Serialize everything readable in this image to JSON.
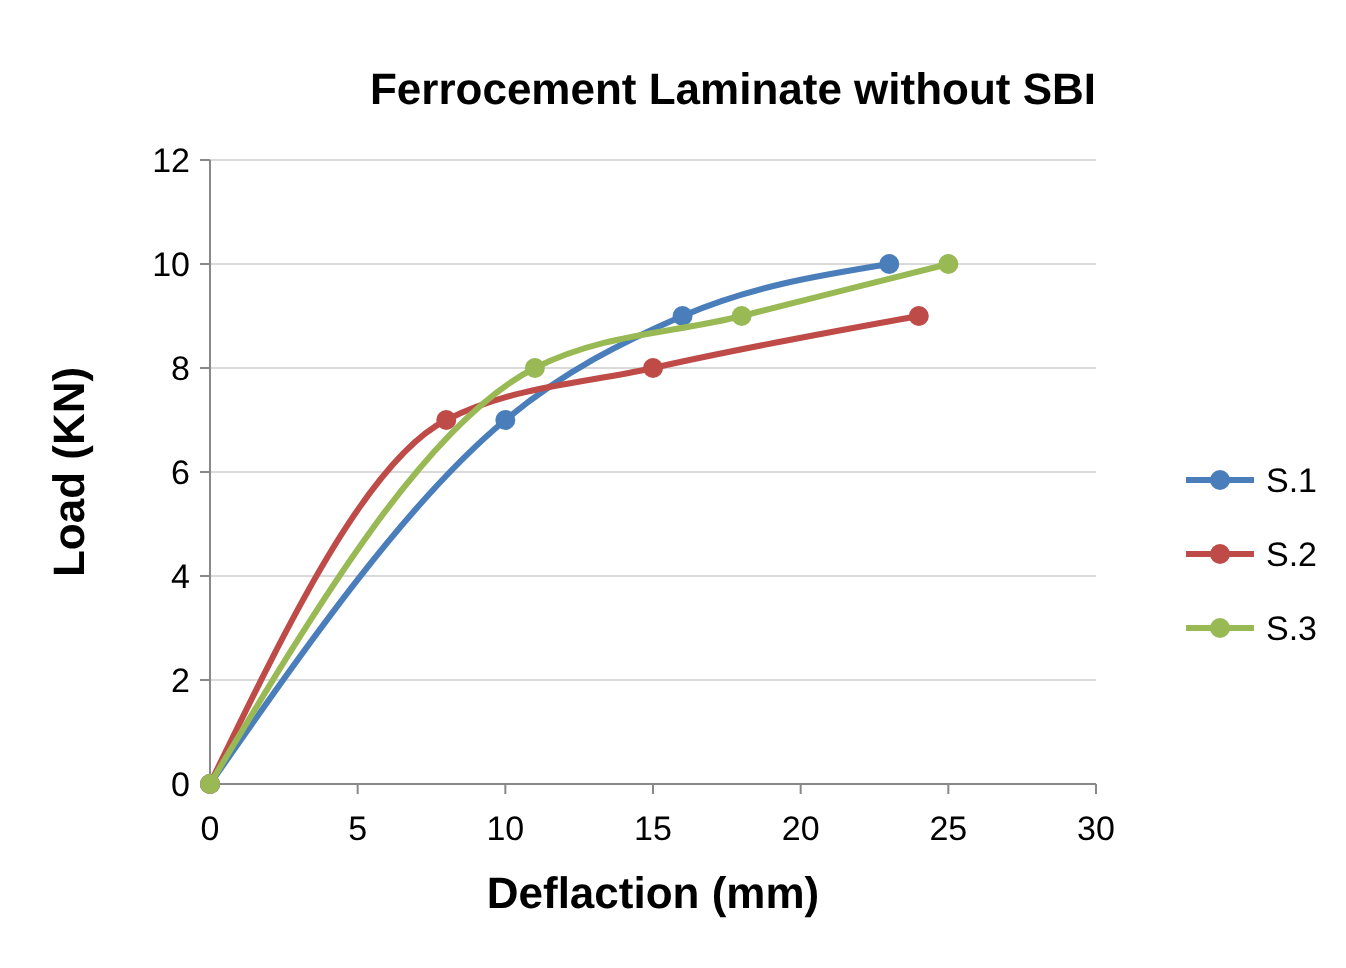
{
  "chart_data": {
    "type": "line",
    "title": "Ferrocement Laminate without SBI",
    "xlabel": "Deflaction (mm)",
    "ylabel": "Load (KN)",
    "xlim": [
      0,
      30
    ],
    "xticks": [
      0,
      5,
      10,
      15,
      20,
      25,
      30
    ],
    "ylim": [
      0,
      12
    ],
    "yticks": [
      0,
      2,
      4,
      6,
      8,
      10,
      12
    ],
    "grid": "y",
    "legend": "right",
    "marker": "circle",
    "line_style": "solid",
    "series": [
      {
        "name": "S.1",
        "color": "#4a7ebb",
        "x": [
          0,
          10,
          16,
          23
        ],
        "values": [
          0,
          7,
          9,
          10
        ]
      },
      {
        "name": "S.2",
        "color": "#be4b48",
        "x": [
          0,
          8,
          15,
          24
        ],
        "values": [
          0,
          7,
          8,
          9
        ]
      },
      {
        "name": "S.3",
        "color": "#98b954",
        "x": [
          0,
          11,
          18,
          25
        ],
        "values": [
          0,
          8,
          9,
          10
        ]
      }
    ]
  }
}
